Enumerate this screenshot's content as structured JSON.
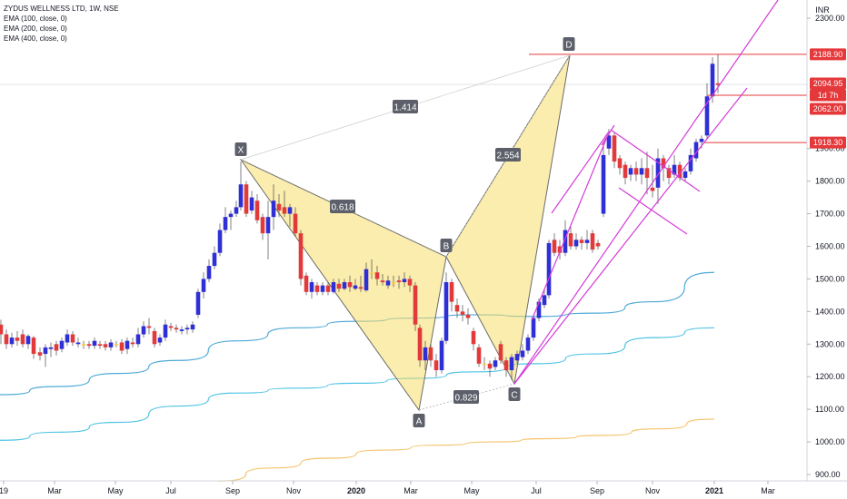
{
  "header": {
    "symbol_line": "ZYDUS WELLNESS LTD, 1W, NSE",
    "indicators": [
      "EMA (100, close, 0)",
      "EMA (200, close, 0)",
      "EMA (400, close, 0)"
    ]
  },
  "colors": {
    "up": "#2f2fd6",
    "down": "#e23a3a",
    "neutral": "#f6d24a",
    "ema100": "#4fa9d8",
    "ema200": "#4fc3e3",
    "ema400": "#f4c36a",
    "pattern_fill": "#f7df6a",
    "channel": "#d43bd8",
    "hline": "#e5383b",
    "label_bg": "#5d606b"
  },
  "chart_data": {
    "type": "candlestick",
    "y_axis": {
      "unit": "INR",
      "ticks": [
        "2300.00",
        "2188.90",
        "2094.95",
        "1d 7h",
        "2062.00",
        "1918.30",
        "1900.00",
        "1800.00",
        "1700.00",
        "1600.00",
        "1500.00",
        "1400.00",
        "1300.00",
        "1200.00",
        "1100.00",
        "1000.00",
        "900.00"
      ],
      "ylim": [
        880,
        2350
      ]
    },
    "x_axis": {
      "ticks": [
        "19",
        "Mar",
        "May",
        "Jul",
        "Sep",
        "Nov",
        "2020",
        "Mar",
        "May",
        "Jul",
        "Sep",
        "Nov",
        "2021",
        "Mar"
      ]
    },
    "price_labels": [
      {
        "value": 2188.9,
        "text": "2188.90",
        "color": "#e5383b"
      },
      {
        "value": 2094.95,
        "text": "2094.95",
        "color": "#e5383b"
      },
      {
        "value": 2062.0,
        "text": "2062.00",
        "color": "#e5383b"
      },
      {
        "value": 1918.3,
        "text": "1918.30",
        "color": "#e5383b"
      }
    ],
    "countdown": "1d 7h",
    "harmonic_pattern": {
      "points": [
        {
          "label": "X",
          "date": "2019-09",
          "price": 1860
        },
        {
          "label": "A",
          "date": "2020-03",
          "price": 1100
        },
        {
          "label": "B",
          "date": "2020-04",
          "price": 1570
        },
        {
          "label": "C",
          "date": "2020-06",
          "price": 1180
        },
        {
          "label": "D",
          "date": "2020-08",
          "price": 2190
        }
      ],
      "ratios": [
        "0.618",
        "0.829",
        "2.554",
        "1.414"
      ]
    },
    "series": [
      {
        "name": "EMA (100, close, 0)",
        "values": [
          1145,
          1170,
          1210,
          1250,
          1310,
          1350,
          1370,
          1380,
          1390,
          1385,
          1395,
          1430,
          1520
        ]
      },
      {
        "name": "EMA (200, close, 0)",
        "values": [
          1005,
          1030,
          1060,
          1110,
          1150,
          1165,
          1180,
          1195,
          1215,
          1240,
          1270,
          1320,
          1350
        ]
      },
      {
        "name": "EMA (400, close, 0)",
        "values": [
          880,
          920,
          950,
          975,
          990,
          1000,
          1010,
          1020,
          1040,
          1070
        ]
      }
    ]
  }
}
